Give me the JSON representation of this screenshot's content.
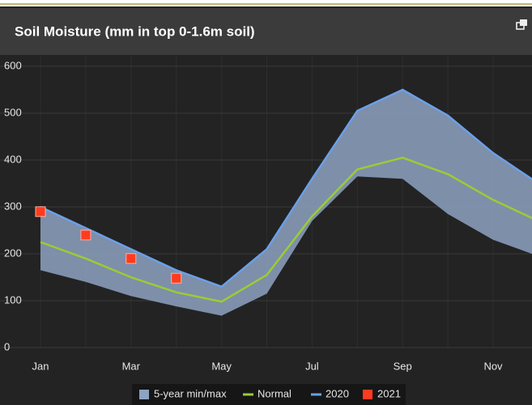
{
  "chart_data": {
    "type": "line",
    "title": "Soil Moisture (mm in top 0-1.6m soil)",
    "categories": [
      "Jan",
      null,
      "Mar",
      null,
      "May",
      null,
      "Jul",
      null,
      "Sep",
      null,
      "Nov",
      null
    ],
    "ylim": [
      0,
      600
    ],
    "yticks": [
      0,
      100,
      200,
      300,
      400,
      500,
      600
    ],
    "grid": true,
    "series": [
      {
        "name": "5-year min/max",
        "type": "band",
        "color": "#8ea2c2",
        "low": [
          165,
          140,
          110,
          88,
          68,
          115,
          270,
          365,
          360,
          285,
          230,
          195
        ],
        "high": [
          300,
          255,
          210,
          165,
          130,
          210,
          360,
          505,
          550,
          495,
          415,
          350
        ]
      },
      {
        "name": "Normal",
        "type": "line",
        "color": "#9acd32",
        "values": [
          225,
          190,
          150,
          118,
          98,
          155,
          280,
          380,
          405,
          370,
          315,
          270
        ]
      },
      {
        "name": "2020",
        "type": "line",
        "color": "#6aa0e8",
        "values": [
          300,
          255,
          210,
          165,
          130,
          210,
          360,
          505,
          550,
          495,
          415,
          350
        ]
      },
      {
        "name": "2021",
        "type": "scatter",
        "color": "#ff3b1f",
        "values": [
          290,
          240,
          190,
          148,
          null,
          null,
          null,
          null,
          null,
          null,
          null,
          null
        ]
      }
    ]
  }
}
